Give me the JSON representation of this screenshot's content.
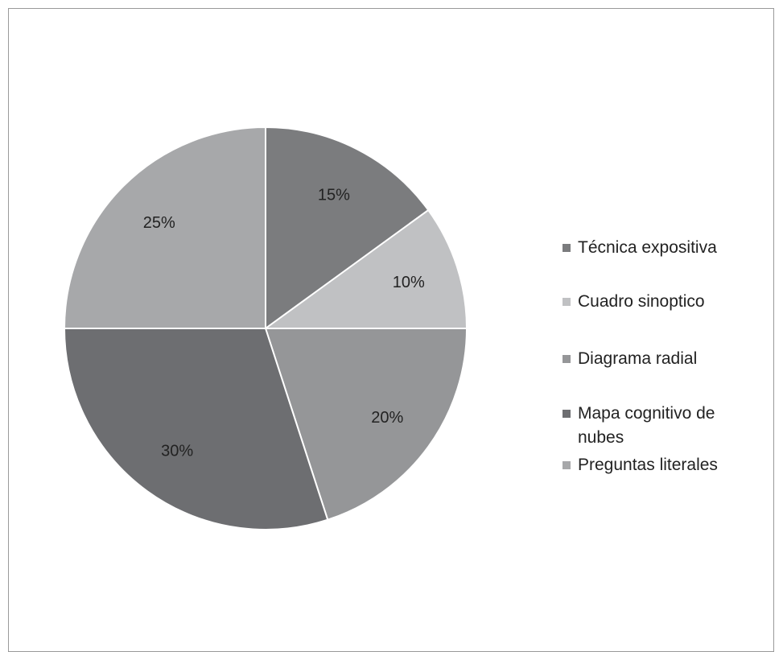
{
  "chart_data": {
    "type": "pie",
    "categories": [
      "Técnica expositiva",
      "Cuadro sinoptico",
      "Diagrama radial",
      "Mapa cognitivo de nubes",
      "Preguntas literales"
    ],
    "values": [
      15,
      10,
      20,
      30,
      25
    ],
    "value_labels": [
      "15%",
      "10%",
      "20%",
      "30%",
      "25%"
    ],
    "colors": [
      "#7b7c7e",
      "#c0c1c3",
      "#959698",
      "#6d6e71",
      "#a7a8aa"
    ],
    "start_angle": "12 o'clock",
    "direction": "clockwise",
    "legend_position": "right"
  }
}
